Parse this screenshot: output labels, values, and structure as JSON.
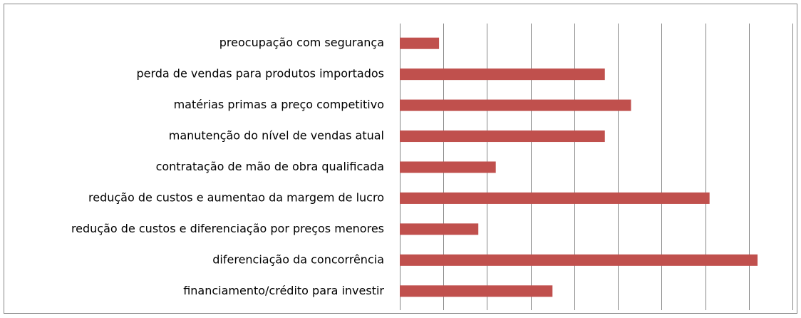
{
  "chart_data": {
    "type": "bar",
    "orientation": "horizontal",
    "categories": [
      "preocupação com segurança",
      "perda de vendas para produtos importados",
      "matérias primas a preço competitivo",
      "manutenção do nível de vendas atual",
      "contratação de mão de obra qualificada",
      "redução de custos e aumentao da margem de lucro",
      "redução de custos e diferenciação por preços menores",
      "diferenciação da concorrência",
      "financiamento/crédito para investir"
    ],
    "values": [
      0.9,
      4.7,
      5.3,
      4.7,
      2.2,
      7.1,
      1.8,
      8.2,
      3.5
    ],
    "color": "#c0504d",
    "xlim": [
      0,
      9
    ],
    "xticks": [
      0,
      1,
      2,
      3,
      4,
      5,
      6,
      7,
      8,
      9
    ],
    "grid": true
  }
}
